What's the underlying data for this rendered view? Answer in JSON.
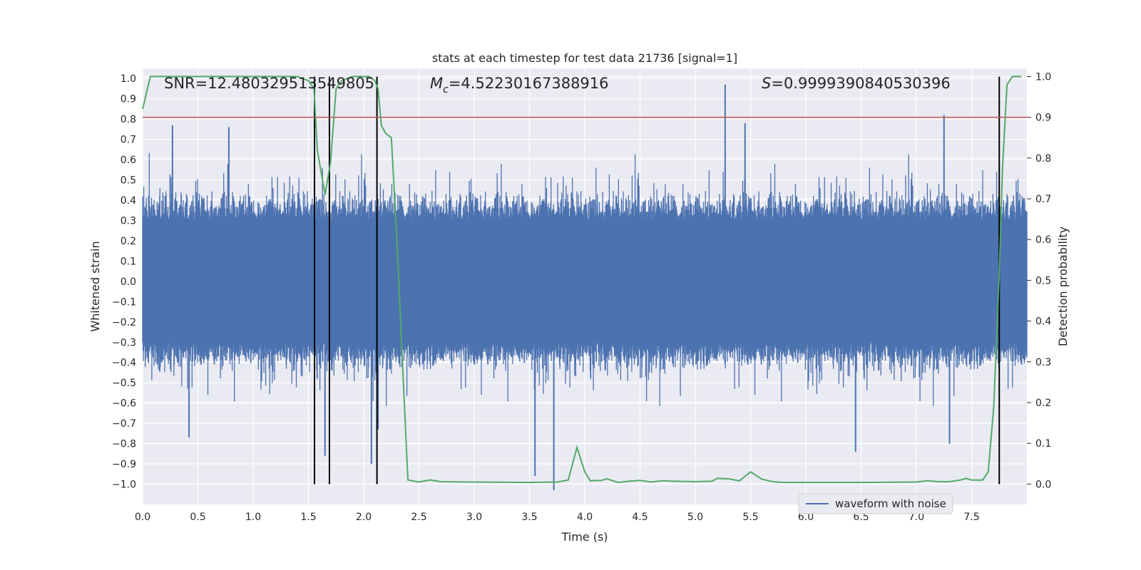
{
  "chart_data": {
    "type": "line",
    "title": "stats at each timestep for test data 21736 [signal=1]",
    "xlabel": "Time (s)",
    "ylabel_left": "Whitened strain",
    "ylabel_right": "Detection probability",
    "xlim": [
      0.0,
      8.0
    ],
    "ylim_left": [
      -1.1,
      1.05
    ],
    "ylim_right": [
      -0.05,
      1.02
    ],
    "x_ticks": [
      "0.0",
      "0.5",
      "1.0",
      "1.5",
      "2.0",
      "2.5",
      "3.0",
      "3.5",
      "4.0",
      "4.5",
      "5.0",
      "5.5",
      "6.0",
      "6.5",
      "7.0",
      "7.5"
    ],
    "y_left_ticks": [
      "-1.0",
      "-0.9",
      "-0.8",
      "-0.7",
      "-0.6",
      "-0.5",
      "-0.4",
      "-0.3",
      "-0.2",
      "-0.1",
      "0.0",
      "0.1",
      "0.2",
      "0.3",
      "0.4",
      "0.5",
      "0.6",
      "0.7",
      "0.8",
      "0.9",
      "1.0"
    ],
    "y_right_ticks": [
      "0.0",
      "0.1",
      "0.2",
      "0.3",
      "0.4",
      "0.5",
      "0.6",
      "0.7",
      "0.8",
      "0.9",
      "1.0"
    ],
    "annotations": {
      "snr": "SNR=12.480329513549805",
      "mc_symbol": "M",
      "mc_sub": "c",
      "mc_value": "=4.52230167388916",
      "s_symbol": "S",
      "s_value": "=0.9999390840530396"
    },
    "threshold": {
      "value": 0.9,
      "axis": "right",
      "color": "#c44e52"
    },
    "vertical_lines": [
      1.555,
      1.69,
      2.12,
      7.75
    ],
    "series": [
      {
        "name": "waveform with noise",
        "axis": "left",
        "color": "#4c72b0",
        "envelope_description": "dense noise roughly between -0.5 and 0.6 over 0–8 s",
        "peaks": [
          [
            0.27,
            0.77
          ],
          [
            0.78,
            0.76
          ],
          [
            1.65,
            -0.86
          ],
          [
            2.07,
            -0.9
          ],
          [
            2.13,
            -0.73
          ],
          [
            3.55,
            -0.96
          ],
          [
            3.72,
            -1.03
          ],
          [
            5.27,
            0.97
          ],
          [
            5.45,
            0.78
          ],
          [
            6.45,
            -0.84
          ],
          [
            7.25,
            0.82
          ],
          [
            7.3,
            -0.8
          ],
          [
            0.42,
            -0.77
          ]
        ]
      },
      {
        "name": "detection probability",
        "axis": "right",
        "color": "#55a868",
        "x": [
          0.0,
          0.07,
          0.2,
          0.5,
          1.0,
          1.4,
          1.5,
          1.55,
          1.58,
          1.65,
          1.7,
          1.75,
          1.8,
          1.9,
          2.0,
          2.05,
          2.1,
          2.13,
          2.16,
          2.2,
          2.25,
          2.3,
          2.35,
          2.4,
          2.5,
          2.6,
          2.7,
          2.9,
          3.0,
          3.5,
          3.75,
          3.85,
          3.93,
          4.0,
          4.05,
          4.15,
          4.2,
          4.3,
          4.4,
          4.5,
          4.6,
          4.7,
          4.8,
          5.0,
          5.15,
          5.2,
          5.3,
          5.4,
          5.5,
          5.6,
          5.7,
          5.8,
          6.0,
          6.5,
          7.0,
          7.1,
          7.2,
          7.3,
          7.4,
          7.45,
          7.5,
          7.6,
          7.65,
          7.7,
          7.75,
          7.78,
          7.82,
          7.87,
          7.95
        ],
        "y": [
          0.92,
          1.0,
          1.0,
          1.0,
          1.0,
          1.0,
          0.99,
          0.97,
          0.82,
          0.71,
          0.79,
          0.97,
          0.99,
          1.0,
          1.0,
          1.0,
          0.99,
          0.97,
          0.88,
          0.86,
          0.85,
          0.6,
          0.3,
          0.01,
          0.005,
          0.01,
          0.006,
          0.005,
          0.005,
          0.004,
          0.005,
          0.01,
          0.09,
          0.03,
          0.008,
          0.009,
          0.013,
          0.004,
          0.007,
          0.009,
          0.005,
          0.008,
          0.007,
          0.006,
          0.007,
          0.014,
          0.013,
          0.008,
          0.03,
          0.012,
          0.006,
          0.004,
          0.004,
          0.004,
          0.005,
          0.008,
          0.006,
          0.006,
          0.01,
          0.014,
          0.01,
          0.01,
          0.03,
          0.19,
          0.52,
          0.78,
          0.98,
          1.0,
          1.0
        ]
      }
    ],
    "legend": {
      "entries": [
        "waveform with noise"
      ],
      "placement": "bottom-right"
    },
    "grid": true
  }
}
